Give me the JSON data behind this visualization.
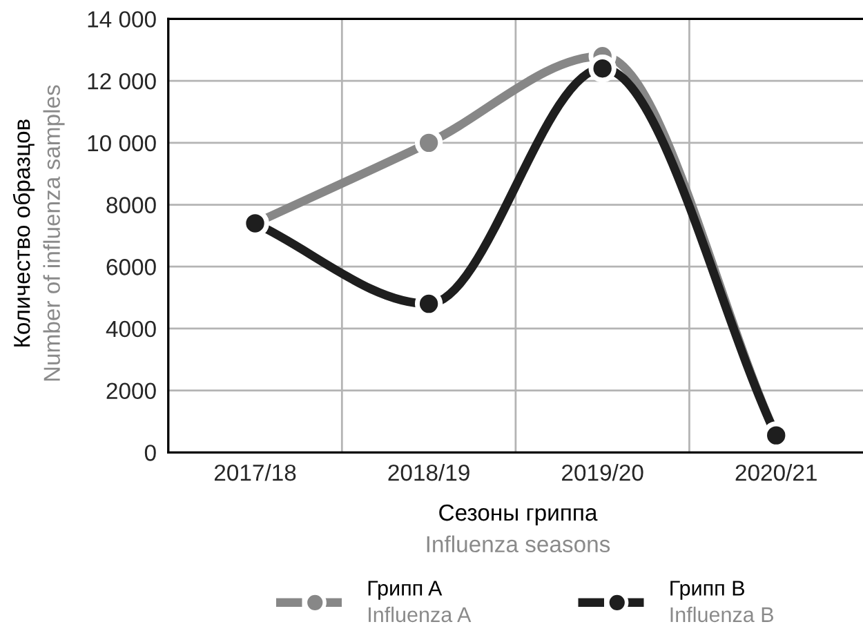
{
  "chart_data": {
    "type": "line",
    "xlabel": "Сезоны гриппа\nInfluenza seasons",
    "ylabel": "Количество образцов\nNumber of influenza samples",
    "categories": [
      "2017/18",
      "2018/19",
      "2019/20",
      "2020/21"
    ],
    "series": [
      {
        "name": "Грипп A\nInfluenza A",
        "color": "#878787",
        "values": [
          7400,
          10000,
          12800,
          550
        ]
      },
      {
        "name": "Грипп B\nInfluenza B",
        "color": "#1e1e1e",
        "values": [
          7400,
          4800,
          12400,
          550
        ]
      }
    ],
    "ylim": [
      0,
      14000
    ],
    "yticks": [
      0,
      2000,
      4000,
      6000,
      8000,
      {
        "value": 10000,
        "label": "10 000"
      },
      {
        "value": 12000,
        "label": "12 000"
      },
      {
        "value": 14000,
        "label": "14 000"
      }
    ],
    "grid": true,
    "legend": "bottom",
    "marker": "circle",
    "line_style": "solid"
  }
}
